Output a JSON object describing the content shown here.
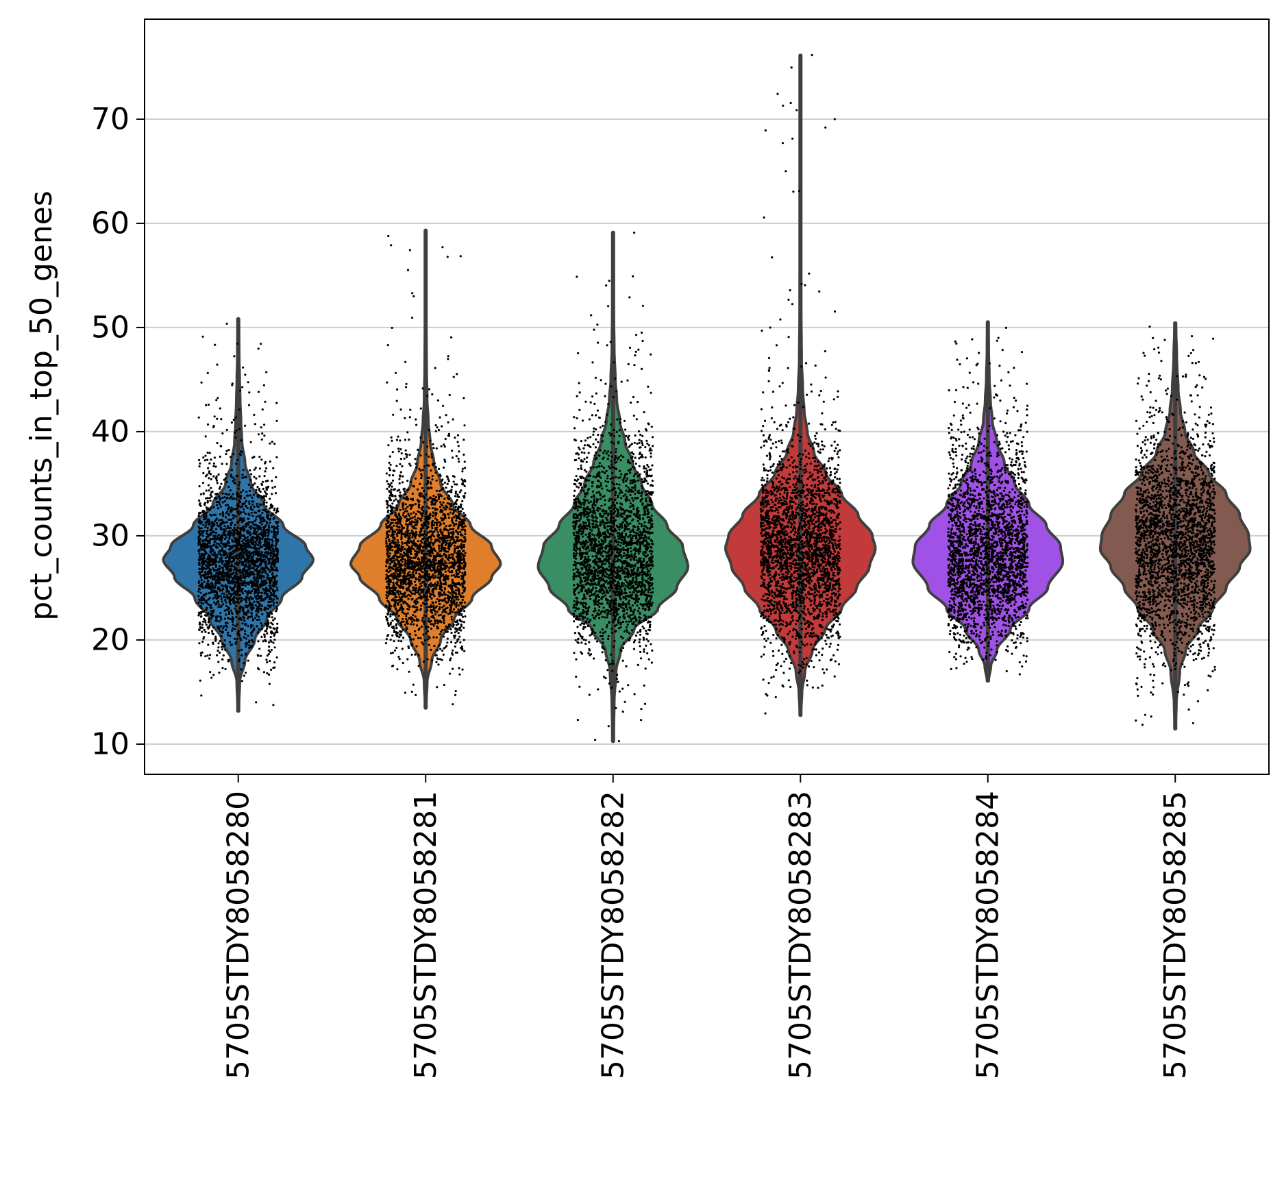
{
  "chart_data": {
    "type": "violin",
    "title": "",
    "xlabel": "",
    "ylabel": "pct_counts_in_top_50_genes",
    "ylim": [
      7.1,
      79.6
    ],
    "yticks": [
      10,
      20,
      30,
      40,
      50,
      60,
      70
    ],
    "grid": "y",
    "legend": "none",
    "jitter_points": true,
    "series": [
      {
        "category": "5705STDY8058280",
        "color": "#2e75a9",
        "min": 13.2,
        "max": 50.8,
        "profile": [
          [
            13.2,
            0.005
          ],
          [
            16,
            0.02
          ],
          [
            18,
            0.09
          ],
          [
            20,
            0.22
          ],
          [
            22,
            0.38
          ],
          [
            24,
            0.58
          ],
          [
            26,
            0.85
          ],
          [
            27.7,
            1.0
          ],
          [
            29,
            0.9
          ],
          [
            31,
            0.6
          ],
          [
            33,
            0.34
          ],
          [
            35,
            0.17
          ],
          [
            37,
            0.09
          ],
          [
            39,
            0.05
          ],
          [
            41,
            0.035
          ],
          [
            43,
            0.025
          ],
          [
            45,
            0.018
          ],
          [
            47,
            0.012
          ],
          [
            49,
            0.008
          ],
          [
            50.8,
            0.004
          ]
        ]
      },
      {
        "category": "5705STDY8058281",
        "color": "#e07f2b",
        "min": 13.5,
        "max": 59.3,
        "profile": [
          [
            13.5,
            0.005
          ],
          [
            16,
            0.02
          ],
          [
            18,
            0.08
          ],
          [
            20,
            0.2
          ],
          [
            22,
            0.38
          ],
          [
            24,
            0.62
          ],
          [
            26,
            0.88
          ],
          [
            27.3,
            1.0
          ],
          [
            29,
            0.88
          ],
          [
            31,
            0.6
          ],
          [
            33,
            0.36
          ],
          [
            35,
            0.2
          ],
          [
            37,
            0.11
          ],
          [
            39,
            0.06
          ],
          [
            41,
            0.035
          ],
          [
            43,
            0.02
          ],
          [
            46,
            0.012
          ],
          [
            50,
            0.007
          ],
          [
            55,
            0.005
          ],
          [
            59.3,
            0.004
          ]
        ]
      },
      {
        "category": "5705STDY8058282",
        "color": "#3a8e64",
        "min": 10.3,
        "max": 59.1,
        "profile": [
          [
            10.3,
            0.005
          ],
          [
            14,
            0.015
          ],
          [
            17,
            0.04
          ],
          [
            19,
            0.1
          ],
          [
            21,
            0.28
          ],
          [
            23,
            0.6
          ],
          [
            25,
            0.85
          ],
          [
            27,
            1.0
          ],
          [
            29,
            0.93
          ],
          [
            31,
            0.72
          ],
          [
            33,
            0.52
          ],
          [
            35,
            0.38
          ],
          [
            37,
            0.26
          ],
          [
            39,
            0.16
          ],
          [
            41,
            0.09
          ],
          [
            43,
            0.05
          ],
          [
            45,
            0.03
          ],
          [
            48,
            0.015
          ],
          [
            52,
            0.008
          ],
          [
            59.1,
            0.004
          ]
        ]
      },
      {
        "category": "5705STDY8058283",
        "color": "#c23a3a",
        "min": 12.8,
        "max": 76.1,
        "profile": [
          [
            12.8,
            0.005
          ],
          [
            15,
            0.02
          ],
          [
            17,
            0.06
          ],
          [
            19,
            0.16
          ],
          [
            21,
            0.33
          ],
          [
            23,
            0.55
          ],
          [
            25,
            0.75
          ],
          [
            27,
            0.92
          ],
          [
            28.8,
            1.0
          ],
          [
            30,
            0.96
          ],
          [
            32,
            0.77
          ],
          [
            34,
            0.55
          ],
          [
            36,
            0.34
          ],
          [
            38,
            0.18
          ],
          [
            40,
            0.09
          ],
          [
            42,
            0.05
          ],
          [
            44,
            0.03
          ],
          [
            47,
            0.015
          ],
          [
            52,
            0.008
          ],
          [
            60,
            0.005
          ],
          [
            70,
            0.004
          ],
          [
            76.1,
            0.003
          ]
        ]
      },
      {
        "category": "5705STDY8058284",
        "color": "#a052e6",
        "min": 16.1,
        "max": 50.5,
        "profile": [
          [
            16.1,
            0.01
          ],
          [
            17.5,
            0.04
          ],
          [
            19,
            0.12
          ],
          [
            21,
            0.3
          ],
          [
            23,
            0.55
          ],
          [
            25,
            0.8
          ],
          [
            27.5,
            1.0
          ],
          [
            29,
            0.97
          ],
          [
            31,
            0.78
          ],
          [
            33,
            0.55
          ],
          [
            35,
            0.36
          ],
          [
            37,
            0.22
          ],
          [
            39,
            0.12
          ],
          [
            41,
            0.06
          ],
          [
            43,
            0.035
          ],
          [
            45,
            0.02
          ],
          [
            48,
            0.01
          ],
          [
            50.5,
            0.005
          ]
        ]
      },
      {
        "category": "5705STDY8058285",
        "color": "#835a4f",
        "min": 11.5,
        "max": 50.4,
        "profile": [
          [
            11.5,
            0.005
          ],
          [
            14,
            0.015
          ],
          [
            17,
            0.06
          ],
          [
            19,
            0.14
          ],
          [
            21,
            0.3
          ],
          [
            23,
            0.5
          ],
          [
            25,
            0.68
          ],
          [
            27,
            0.86
          ],
          [
            28.7,
            1.0
          ],
          [
            30,
            0.98
          ],
          [
            32,
            0.86
          ],
          [
            34,
            0.68
          ],
          [
            36,
            0.45
          ],
          [
            38,
            0.25
          ],
          [
            40,
            0.13
          ],
          [
            42,
            0.07
          ],
          [
            44,
            0.04
          ],
          [
            47,
            0.02
          ],
          [
            50.4,
            0.008
          ]
        ]
      }
    ]
  }
}
